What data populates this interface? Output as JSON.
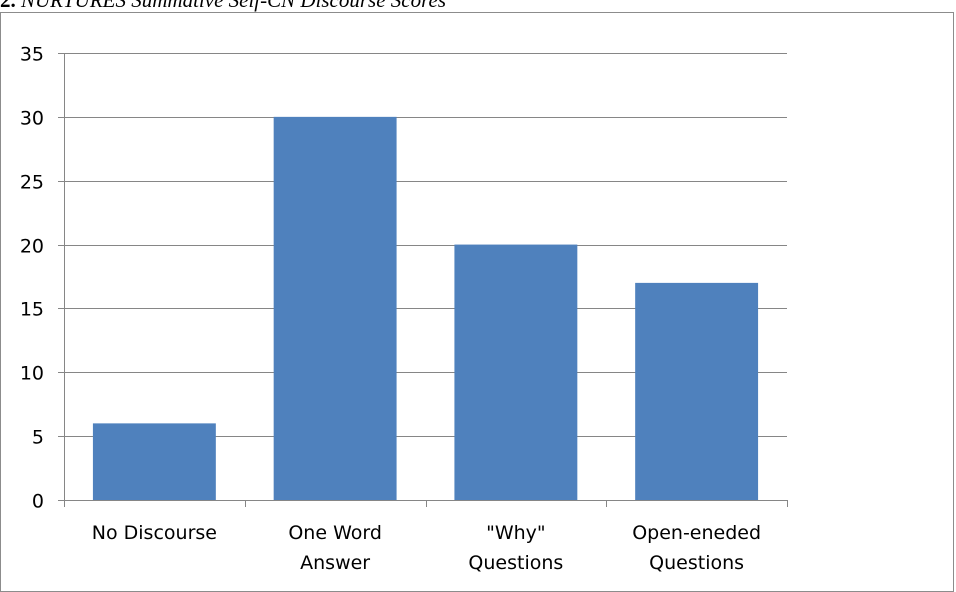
{
  "caption": {
    "number": "2.",
    "title": "NURTURES Summative Self-CN Discourse Scores"
  },
  "chart_data": {
    "type": "bar",
    "title": "",
    "xlabel": "",
    "ylabel": "",
    "categories": [
      [
        "No Discourse"
      ],
      [
        "One Word",
        "Answer"
      ],
      [
        "\"Why\"",
        "Questions"
      ],
      [
        "Open-eneded",
        "Questions"
      ]
    ],
    "values": [
      6,
      30,
      20,
      17
    ],
    "ylim": [
      0,
      35
    ],
    "yticks": [
      0,
      5,
      10,
      15,
      20,
      25,
      30,
      35
    ],
    "grid": true,
    "bar_color": "#4f81bd",
    "grid_color": "#868686"
  }
}
